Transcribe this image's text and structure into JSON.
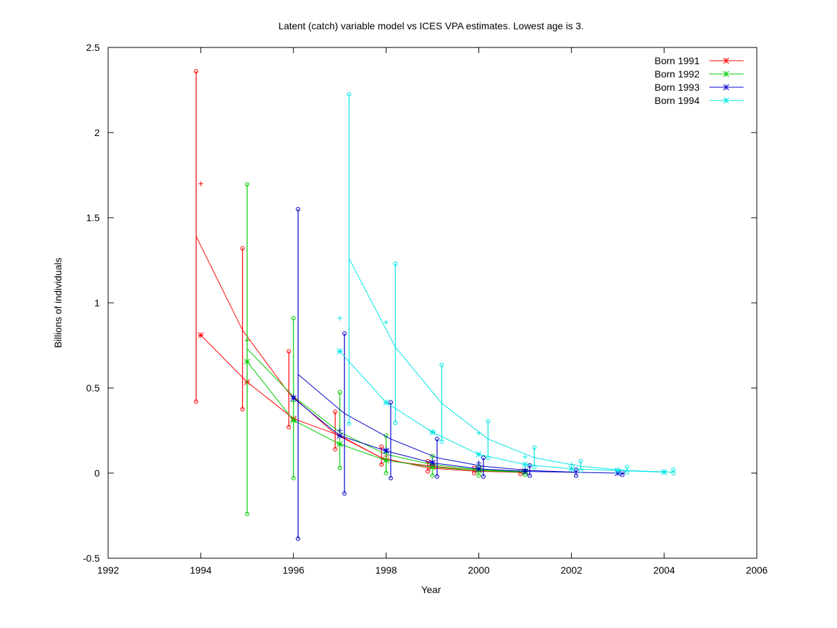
{
  "chart_data": {
    "type": "line",
    "title": "Latent (catch) variable model vs ICES VPA estimates. Lowest age is 3.",
    "xlabel": "Year",
    "ylabel": "Billions of individuals",
    "xlim": [
      1992,
      2006
    ],
    "ylim": [
      -0.5,
      2.5
    ],
    "xticks": [
      1992,
      1994,
      1996,
      1998,
      2000,
      2002,
      2004,
      2006
    ],
    "yticks": [
      -0.5,
      0,
      0.5,
      1,
      1.5,
      2,
      2.5
    ],
    "xtick_labels": [
      "1992",
      "1994",
      "1996",
      "1998",
      "2000",
      "2002",
      "2004",
      "2006"
    ],
    "ytick_labels": [
      "-0.5",
      "0",
      "0.5",
      "1",
      "1.5",
      "2",
      "2.5"
    ],
    "legend_position": "top-right",
    "series": [
      {
        "name": "Born 1991",
        "color": "#ff0000",
        "vpa": [
          [
            1994,
            0.81
          ],
          [
            1995,
            0.535
          ],
          [
            1996,
            0.32
          ],
          [
            1997,
            0.22
          ],
          [
            1998,
            0.075
          ],
          [
            1999,
            0.04
          ],
          [
            2000,
            0.015
          ],
          [
            2001,
            0.005
          ]
        ],
        "model_line": [
          [
            1993.9,
            1.39
          ],
          [
            1994.9,
            0.84
          ],
          [
            1995.9,
            0.47
          ],
          [
            1996.9,
            0.23
          ],
          [
            1997.9,
            0.09
          ],
          [
            1998.9,
            0.03
          ],
          [
            1999.9,
            0.012
          ],
          [
            2000.9,
            0.004
          ]
        ],
        "model_plus": [
          [
            1994,
            1.7
          ],
          [
            1995,
            0.78
          ],
          [
            1996,
            0.44
          ],
          [
            1997,
            0.25
          ],
          [
            1998,
            0.1
          ],
          [
            1999,
            0.05
          ],
          [
            2000,
            0.02
          ]
        ],
        "intervals": [
          [
            1993.9,
            0.42,
            2.36
          ],
          [
            1994.9,
            0.375,
            1.32
          ],
          [
            1995.9,
            0.27,
            0.715
          ],
          [
            1996.9,
            0.14,
            0.36
          ],
          [
            1997.9,
            0.05,
            0.155
          ],
          [
            1998.9,
            0.01,
            0.07
          ],
          [
            1999.9,
            0.0,
            0.03
          ],
          [
            2000.9,
            -0.005,
            0.012
          ]
        ]
      },
      {
        "name": "Born 1992",
        "color": "#00cc00",
        "vpa": [
          [
            1995,
            0.655
          ],
          [
            1996,
            0.31
          ],
          [
            1997,
            0.17
          ],
          [
            1998,
            0.075
          ],
          [
            1999,
            0.035
          ],
          [
            2000,
            0.015
          ],
          [
            2001,
            0.005
          ]
        ],
        "model_line": [
          [
            1995,
            0.73
          ],
          [
            1996,
            0.45
          ],
          [
            1997,
            0.24
          ],
          [
            1998,
            0.11
          ],
          [
            1999,
            0.05
          ],
          [
            2000,
            0.02
          ],
          [
            2001,
            0.008
          ]
        ],
        "model_plus": [
          [
            1995,
            0.78
          ],
          [
            1996,
            0.42
          ],
          [
            1997,
            0.25
          ],
          [
            1998,
            0.12
          ],
          [
            1999,
            0.06
          ],
          [
            2000,
            0.03
          ]
        ],
        "intervals": [
          [
            1995.0,
            -0.24,
            1.695
          ],
          [
            1996.0,
            -0.03,
            0.91
          ],
          [
            1997.0,
            0.03,
            0.475
          ],
          [
            1998.0,
            0.0,
            0.22
          ],
          [
            1999.0,
            -0.015,
            0.1
          ],
          [
            2000.0,
            -0.015,
            0.04
          ],
          [
            2001.0,
            -0.01,
            0.015
          ]
        ]
      },
      {
        "name": "Born 1993",
        "color": "#0000cc",
        "vpa": [
          [
            1996,
            0.44
          ],
          [
            1997,
            0.22
          ],
          [
            1998,
            0.13
          ],
          [
            1999,
            0.06
          ],
          [
            2000,
            0.025
          ],
          [
            2001,
            0.01
          ],
          [
            2003,
            0.0
          ]
        ],
        "model_line": [
          [
            1996.1,
            0.58
          ],
          [
            1997.1,
            0.35
          ],
          [
            1998.1,
            0.2
          ],
          [
            1999.1,
            0.09
          ],
          [
            2000.1,
            0.04
          ],
          [
            2001.1,
            0.015
          ],
          [
            2002.1,
            0.005
          ]
        ],
        "model_plus": [
          [
            1996,
            0.45
          ],
          [
            1997,
            0.25
          ],
          [
            1998,
            0.14
          ],
          [
            1999,
            0.07
          ],
          [
            2000,
            0.06
          ],
          [
            2001,
            0.02
          ]
        ],
        "intervals": [
          [
            1996.1,
            -0.385,
            1.55
          ],
          [
            1997.1,
            -0.12,
            0.82
          ],
          [
            1998.1,
            -0.03,
            0.415
          ],
          [
            1999.1,
            -0.02,
            0.2
          ],
          [
            2000.1,
            -0.02,
            0.09
          ],
          [
            2001.1,
            -0.015,
            0.045
          ],
          [
            2002.1,
            -0.015,
            0.02
          ],
          [
            2003.1,
            -0.01,
            0.005
          ]
        ]
      },
      {
        "name": "Born 1994",
        "color": "#00e5e5",
        "vpa": [
          [
            1997,
            0.715
          ],
          [
            1998,
            0.415
          ],
          [
            1999,
            0.24
          ],
          [
            2000,
            0.11
          ],
          [
            2001,
            0.05
          ],
          [
            2002,
            0.025
          ],
          [
            2003,
            0.015
          ],
          [
            2004,
            0.005
          ]
        ],
        "model_line": [
          [
            1997.2,
            1.26
          ],
          [
            1998.2,
            0.74
          ],
          [
            1999.2,
            0.41
          ],
          [
            2000.2,
            0.2
          ],
          [
            2001.2,
            0.09
          ],
          [
            2002.2,
            0.04
          ],
          [
            2003.2,
            0.015
          ],
          [
            2004.2,
            0.005
          ]
        ],
        "model_plus": [
          [
            1997,
            0.91
          ],
          [
            1998,
            0.885
          ],
          [
            1999,
            0.245
          ],
          [
            2000,
            0.235
          ],
          [
            2001,
            0.095
          ],
          [
            2002,
            0.05
          ],
          [
            2003,
            0.02
          ],
          [
            2004,
            0.01
          ]
        ],
        "intervals": [
          [
            1997.2,
            0.29,
            2.225
          ],
          [
            1998.2,
            0.295,
            1.23
          ],
          [
            1999.2,
            0.185,
            0.635
          ],
          [
            2000.2,
            0.09,
            0.305
          ],
          [
            2001.2,
            0.035,
            0.15
          ],
          [
            2002.2,
            0.015,
            0.07
          ],
          [
            2003.2,
            0.005,
            0.035
          ],
          [
            2004.2,
            0.0,
            0.02
          ]
        ]
      }
    ]
  }
}
